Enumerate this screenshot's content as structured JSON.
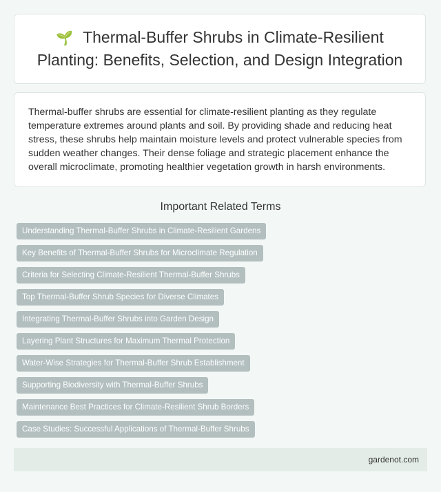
{
  "header": {
    "icon": "sprout-icon",
    "title": "Thermal-Buffer Shrubs in Climate-Resilient Planting: Benefits, Selection, and Design Integration"
  },
  "intro": "Thermal-buffer shrubs are essential for climate-resilient planting as they regulate temperature extremes around plants and soil. By providing shade and reducing heat stress, these shrubs help maintain moisture levels and protect vulnerable species from sudden weather changes. Their dense foliage and strategic placement enhance the overall microclimate, promoting healthier vegetation growth in harsh environments.",
  "related": {
    "heading": "Important Related Terms",
    "items": [
      "Understanding Thermal-Buffer Shrubs in Climate-Resilient Gardens",
      "Key Benefits of Thermal-Buffer Shrubs for Microclimate Regulation",
      "Criteria for Selecting Climate-Resilient Thermal-Buffer Shrubs",
      "Top Thermal-Buffer Shrub Species for Diverse Climates",
      "Integrating Thermal-Buffer Shrubs into Garden Design",
      "Layering Plant Structures for Maximum Thermal Protection",
      "Water-Wise Strategies for Thermal-Buffer Shrub Establishment",
      "Supporting Biodiversity with Thermal-Buffer Shrubs",
      "Maintenance Best Practices for Climate-Resilient Shrub Borders",
      "Case Studies: Successful Applications of Thermal-Buffer Shrubs"
    ]
  },
  "footer": {
    "site": "gardenot.com"
  },
  "colors": {
    "background": "#f3f8f6",
    "tag": "#b3bfbf",
    "footer": "#e4ece8"
  }
}
